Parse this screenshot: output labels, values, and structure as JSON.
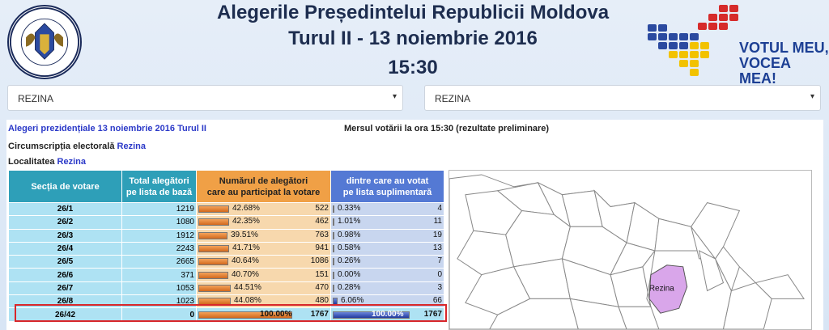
{
  "header": {
    "title_line1": "Alegerile Președintelui Republicii Moldova",
    "title_line2": "Turul II - 13 noiembrie 2016",
    "title_line3": "15:30",
    "seal_text": "REPUBLICA MOLDOVA · COMISIA ELECTORALĂ CENTRALĂ",
    "logo_text_line1": "VOTUL MEU,",
    "logo_text_line2": "VOCEA MEA!"
  },
  "filters": {
    "left_select": "REZINA",
    "right_select": "REZINA"
  },
  "info": {
    "election_link": "Alegeri prezidențiale 13 noiembrie 2016 Turul II",
    "progress_label": "Mersul votării la ora 15:30 (rezultate preliminare)",
    "circumscription_label": "Circumscripția electorală",
    "circumscription_value": "Rezina",
    "locality_label": "Localitatea",
    "locality_value": "Rezina"
  },
  "table": {
    "headers": {
      "section": "Secția de votare",
      "total_line1": "Total alegători",
      "total_line2": "pe lista de bază",
      "part_line1": "Numărul de alegători",
      "part_line2": "care au participat la votare",
      "sup_line1": "dintre care au votat",
      "sup_line2": "pe lista suplimentară"
    },
    "rows": [
      {
        "section": "26/1",
        "total": "1219",
        "part_pct": "42.68%",
        "part_frac": 0.4268,
        "part_num": "522",
        "sup_pct": "0.33%",
        "sup_frac": 0.0033,
        "sup_num": "4"
      },
      {
        "section": "26/2",
        "total": "1080",
        "part_pct": "42.35%",
        "part_frac": 0.4235,
        "part_num": "462",
        "sup_pct": "1.01%",
        "sup_frac": 0.0101,
        "sup_num": "11"
      },
      {
        "section": "26/3",
        "total": "1912",
        "part_pct": "39.51%",
        "part_frac": 0.3951,
        "part_num": "763",
        "sup_pct": "0.98%",
        "sup_frac": 0.0098,
        "sup_num": "19"
      },
      {
        "section": "26/4",
        "total": "2243",
        "part_pct": "41.71%",
        "part_frac": 0.4171,
        "part_num": "941",
        "sup_pct": "0.58%",
        "sup_frac": 0.0058,
        "sup_num": "13"
      },
      {
        "section": "26/5",
        "total": "2665",
        "part_pct": "40.64%",
        "part_frac": 0.4064,
        "part_num": "1086",
        "sup_pct": "0.26%",
        "sup_frac": 0.0026,
        "sup_num": "7"
      },
      {
        "section": "26/6",
        "total": "371",
        "part_pct": "40.70%",
        "part_frac": 0.407,
        "part_num": "151",
        "sup_pct": "0.00%",
        "sup_frac": 0.0,
        "sup_num": "0"
      },
      {
        "section": "26/7",
        "total": "1053",
        "part_pct": "44.51%",
        "part_frac": 0.4451,
        "part_num": "470",
        "sup_pct": "0.28%",
        "sup_frac": 0.0028,
        "sup_num": "3"
      },
      {
        "section": "26/8",
        "total": "1023",
        "part_pct": "44.08%",
        "part_frac": 0.4408,
        "part_num": "480",
        "sup_pct": "6.06%",
        "sup_frac": 0.0606,
        "sup_num": "66"
      }
    ],
    "total_row": {
      "section": "26/42",
      "total": "0",
      "part_pct": "100.00%",
      "part_frac": 1.0,
      "part_num": "1767",
      "sup_pct": "100.00%",
      "sup_frac": 1.0,
      "sup_num": "1767"
    }
  },
  "map": {
    "highlight_label": "Rezina",
    "highlight_color": "#d9a6ea"
  },
  "colors": {
    "title": "#1d2d4f",
    "link_blue": "#2b39c8",
    "header_teal": "#2e9fb8",
    "header_orange": "#f0a046",
    "header_blue": "#5479d4",
    "highlight_border": "#d8262a"
  }
}
